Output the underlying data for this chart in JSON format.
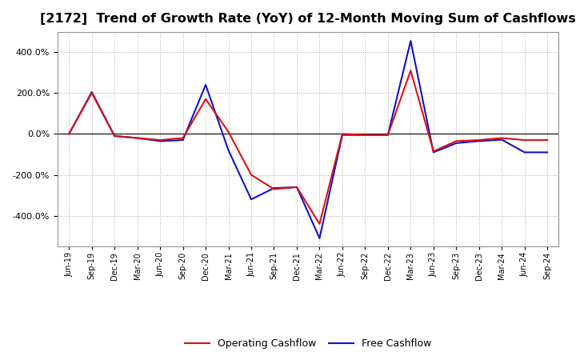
{
  "title": "[2172]  Trend of Growth Rate (YoY) of 12-Month Moving Sum of Cashflows",
  "title_fontsize": 11.5,
  "background_color": "#ffffff",
  "plot_bg_color": "#ffffff",
  "grid_color": "#aaaaaa",
  "ylim": [
    -550,
    500
  ],
  "yticks": [
    -400,
    -200,
    0,
    200,
    400
  ],
  "legend_labels": [
    "Operating Cashflow",
    "Free Cashflow"
  ],
  "line_color_op": "#dd1111",
  "line_color_fc": "#1111cc",
  "x_labels": [
    "Jun-19",
    "Sep-19",
    "Dec-19",
    "Mar-20",
    "Jun-20",
    "Sep-20",
    "Dec-20",
    "Mar-21",
    "Jun-21",
    "Sep-21",
    "Dec-21",
    "Mar-22",
    "Jun-22",
    "Sep-22",
    "Dec-22",
    "Mar-23",
    "Jun-23",
    "Sep-23",
    "Dec-23",
    "Mar-24",
    "Jun-24",
    "Sep-24"
  ],
  "operating_cashflow": [
    0,
    200,
    -10,
    -20,
    -30,
    -20,
    170,
    10,
    -200,
    -270,
    -260,
    -440,
    0,
    -5,
    -5,
    310,
    -85,
    -35,
    -30,
    -20,
    -30,
    -30
  ],
  "free_cashflow": [
    0,
    205,
    -10,
    -20,
    -35,
    -30,
    240,
    -80,
    -320,
    -265,
    -260,
    -510,
    -5,
    -5,
    -5,
    455,
    -90,
    -45,
    -35,
    -28,
    -90,
    -90
  ]
}
